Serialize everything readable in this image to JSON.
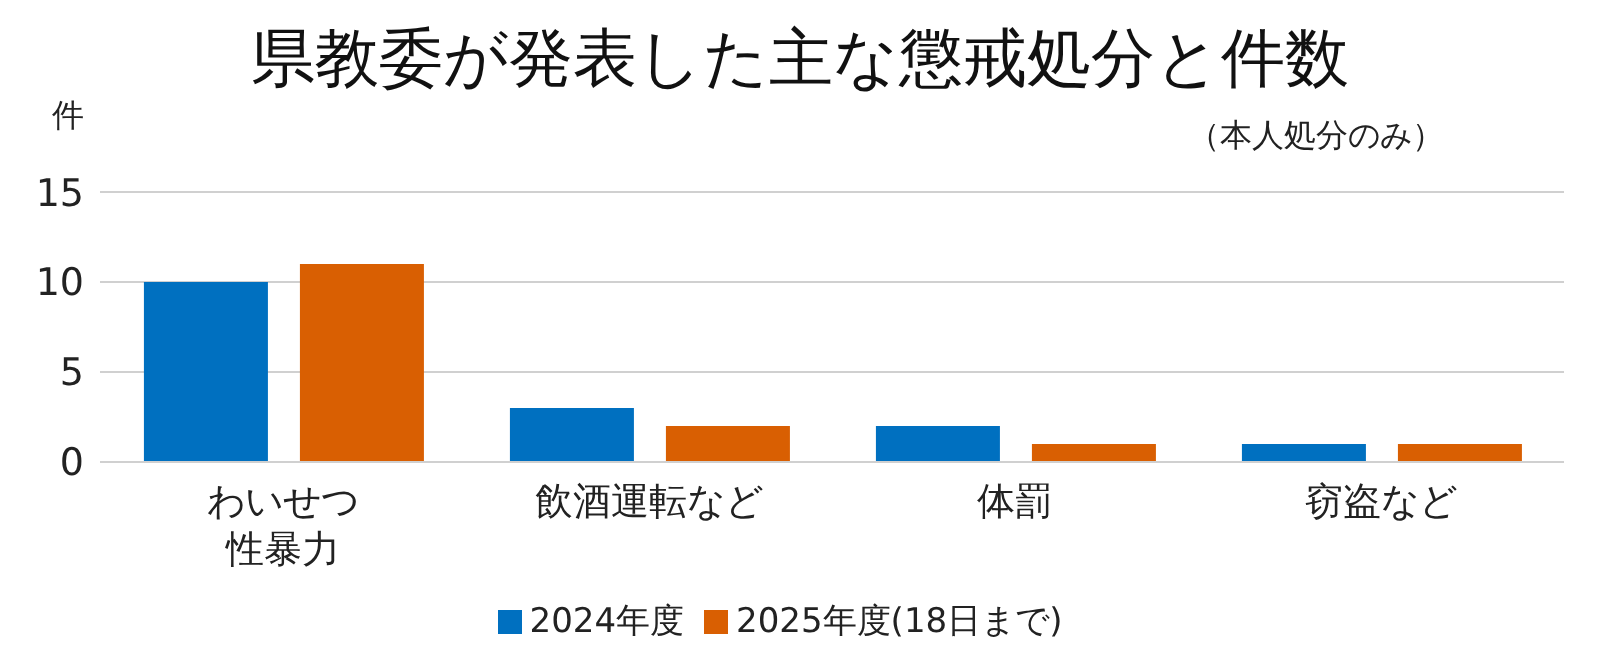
{
  "chart_data": {
    "type": "bar",
    "title": "県教委が発表した主な懲戒処分と件数",
    "subtitle": "（本人処分のみ）",
    "ylabel": "件",
    "categories": [
      "わいせつ性暴力",
      "飲酒運転など",
      "体罰",
      "窃盗など"
    ],
    "series": [
      {
        "name": "2024年度",
        "color": "#0070c0",
        "values": [
          10,
          3,
          2,
          1
        ]
      },
      {
        "name": "2025年度(18日まで)",
        "color": "#d95f02",
        "values": [
          11,
          2,
          1,
          1
        ]
      }
    ],
    "ylim": [
      0,
      15
    ],
    "yticks": [
      0,
      5,
      10,
      15
    ],
    "grid": "y",
    "legend": "bottom"
  }
}
